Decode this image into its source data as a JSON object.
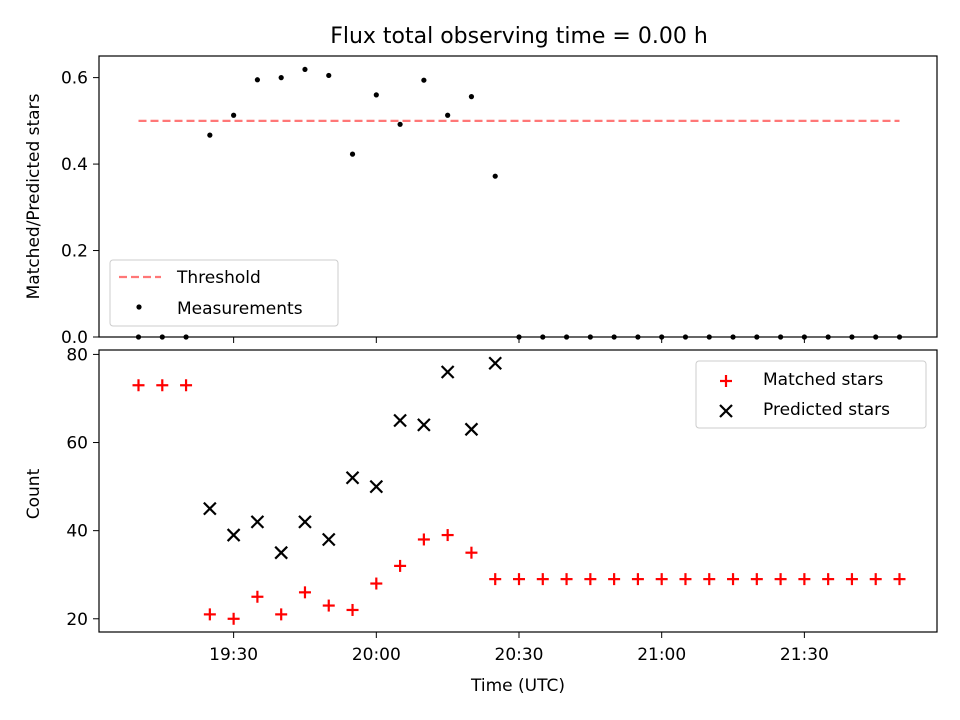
{
  "figure": {
    "title": "Flux total observing time = 0.00 h",
    "xlabel": "Time (UTC)",
    "x_ticks": [
      "19:30",
      "20:00",
      "20:30",
      "21:00",
      "21:30"
    ]
  },
  "chart_data": [
    {
      "type": "scatter",
      "ylabel": "Matched/Predicted stars",
      "ylim": [
        0,
        0.65
      ],
      "y_ticks": [
        "0.0",
        "0.2",
        "0.4",
        "0.6"
      ],
      "legend_position": "lower-left",
      "threshold": {
        "name": "Threshold",
        "value": 0.5,
        "x_start": "19:10",
        "x_end": "21:50",
        "color": "#ff7777"
      },
      "series": [
        {
          "name": "Measurements",
          "color": "#000000",
          "x": [
            "19:10",
            "19:15",
            "19:20",
            "19:25",
            "19:30",
            "19:35",
            "19:40",
            "19:45",
            "19:50",
            "19:55",
            "20:00",
            "20:05",
            "20:10",
            "20:15",
            "20:20",
            "20:25",
            "20:30",
            "20:35",
            "20:40",
            "20:45",
            "20:50",
            "20:55",
            "21:00",
            "21:05",
            "21:10",
            "21:15",
            "21:20",
            "21:25",
            "21:30",
            "21:35",
            "21:40",
            "21:45",
            "21:50"
          ],
          "values": [
            0,
            0,
            0,
            0.467,
            0.513,
            0.595,
            0.6,
            0.619,
            0.605,
            0.423,
            0.56,
            0.492,
            0.594,
            0.513,
            0.556,
            0.372,
            0,
            0,
            0,
            0,
            0,
            0,
            0,
            0,
            0,
            0,
            0,
            0,
            0,
            0,
            0,
            0,
            0
          ]
        }
      ]
    },
    {
      "type": "scatter",
      "ylabel": "Count",
      "ylim": [
        17,
        81
      ],
      "y_ticks": [
        "20",
        "40",
        "60",
        "80"
      ],
      "legend_position": "upper-right",
      "series": [
        {
          "name": "Matched stars",
          "marker": "+",
          "color": "#ff0000",
          "x": [
            "19:10",
            "19:15",
            "19:20",
            "19:25",
            "19:30",
            "19:35",
            "19:40",
            "19:45",
            "19:50",
            "19:55",
            "20:00",
            "20:05",
            "20:10",
            "20:15",
            "20:20",
            "20:25",
            "20:30",
            "20:35",
            "20:40",
            "20:45",
            "20:50",
            "20:55",
            "21:00",
            "21:05",
            "21:10",
            "21:15",
            "21:20",
            "21:25",
            "21:30",
            "21:35",
            "21:40",
            "21:45",
            "21:50"
          ],
          "values": [
            73,
            73,
            73,
            21,
            20,
            25,
            21,
            26,
            23,
            22,
            28,
            32,
            38,
            39,
            35,
            29,
            29,
            29,
            29,
            29,
            29,
            29,
            29,
            29,
            29,
            29,
            29,
            29,
            29,
            29,
            29,
            29,
            29
          ]
        },
        {
          "name": "Predicted stars",
          "marker": "x",
          "color": "#000000",
          "x": [
            "19:25",
            "19:30",
            "19:35",
            "19:40",
            "19:45",
            "19:50",
            "19:55",
            "20:00",
            "20:05",
            "20:10",
            "20:15",
            "20:20",
            "20:25"
          ],
          "values": [
            45,
            39,
            42,
            35,
            42,
            38,
            52,
            50,
            65,
            64,
            76,
            63,
            78
          ]
        }
      ]
    }
  ]
}
